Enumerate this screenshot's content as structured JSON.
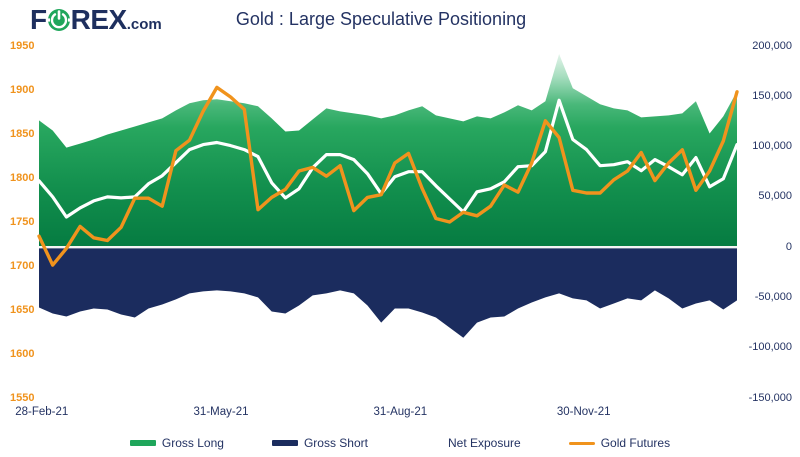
{
  "logo": {
    "text_before": "F",
    "power_letter": "O",
    "text_after": "REX",
    "tld": ".com"
  },
  "title": "Gold : Large Speculative Positioning",
  "colors": {
    "brand_navy": "#1E2F5E",
    "navy_area": "#1B2C5E",
    "navy_text": "#243363",
    "orange": "#F0931D",
    "green": "#1FA65B",
    "white_line": "#FFFFFF",
    "background": "#FFFFFF"
  },
  "chart_data": {
    "type": "area",
    "title": "Gold : Large Speculative Positioning",
    "x_unit": "week_index",
    "x_range": [
      0,
      51
    ],
    "x_ticks": [
      {
        "index": 0.2,
        "label": "28-Feb-21"
      },
      {
        "index": 13.3,
        "label": "31-May-21"
      },
      {
        "index": 26.4,
        "label": "31-Aug-21"
      },
      {
        "index": 39.8,
        "label": "30-Nov-21"
      }
    ],
    "left_axis": {
      "min": 1550,
      "max": 1950,
      "tick_step": 50,
      "tick_labels": [
        "1950",
        "1900",
        "1850",
        "1800",
        "1750",
        "1700",
        "1650",
        "1600",
        "1550"
      ],
      "color": "#F0931D"
    },
    "right_axis": {
      "min": -150000,
      "max": 200000,
      "tick_step": 50000,
      "tick_labels": [
        "200,000",
        "150,000",
        "100,000",
        "50,000",
        "0",
        "-50,000",
        "-100,000",
        "-150,000"
      ],
      "color": "#243363"
    },
    "grid": false,
    "legend_position": "bottom",
    "series": [
      {
        "name": "Gross Long",
        "type": "area",
        "axis": "right",
        "color": "#1FA65B",
        "gradient": [
          {
            "offset": 0,
            "color": "#E3F4EA"
          },
          {
            "offset": 0.12,
            "color": "#A5DDBE"
          },
          {
            "offset": 0.26,
            "color": "#4AB87A"
          },
          {
            "offset": 0.38,
            "color": "#28A75F"
          },
          {
            "offset": 0.68,
            "color": "#13904E"
          },
          {
            "offset": 1,
            "color": "#057B41"
          }
        ],
        "values": [
          126000,
          116000,
          99000,
          103000,
          107000,
          112000,
          116000,
          120000,
          124000,
          128000,
          136000,
          143000,
          146000,
          147000,
          145000,
          143000,
          140000,
          128000,
          115000,
          116000,
          127000,
          138000,
          135000,
          133000,
          131000,
          128000,
          131000,
          136000,
          140000,
          131000,
          128000,
          125000,
          130000,
          128000,
          134000,
          141000,
          136000,
          145000,
          192000,
          158000,
          150000,
          142000,
          138000,
          136000,
          129000,
          130000,
          131000,
          133000,
          145000,
          113000,
          130000,
          155000
        ]
      },
      {
        "name": "Gross Short",
        "type": "area",
        "axis": "right",
        "color": "#1B2C5E",
        "values": [
          -60000,
          -66000,
          -69000,
          -64000,
          -61000,
          -62000,
          -67000,
          -70000,
          -61000,
          -57000,
          -52000,
          -46000,
          -44000,
          -43000,
          -44000,
          -46000,
          -50000,
          -64000,
          -66000,
          -58000,
          -48000,
          -46000,
          -43000,
          -46000,
          -58000,
          -75000,
          -61000,
          -61000,
          -65000,
          -70000,
          -80000,
          -90000,
          -75000,
          -70000,
          -69000,
          -61000,
          -55000,
          -50000,
          -46000,
          -51000,
          -53000,
          -61000,
          -56000,
          -51000,
          -53000,
          -43000,
          -51000,
          -61000,
          -56000,
          -53000,
          -62000,
          -53000
        ]
      },
      {
        "name": "Net Exposure",
        "type": "line",
        "axis": "right",
        "color": "#FFFFFF",
        "values": [
          66000,
          50000,
          30000,
          39000,
          46000,
          50000,
          49000,
          50000,
          63000,
          71000,
          84000,
          97000,
          102000,
          104000,
          101000,
          97000,
          90000,
          64000,
          49000,
          58000,
          79000,
          92000,
          92000,
          87000,
          73000,
          53000,
          70000,
          75000,
          75000,
          61000,
          48000,
          35000,
          55000,
          58000,
          65000,
          80000,
          81000,
          95000,
          146000,
          107000,
          97000,
          81000,
          82000,
          85000,
          76000,
          87000,
          80000,
          72000,
          89000,
          60000,
          68000,
          102000
        ]
      },
      {
        "name": "Gold Futures",
        "type": "line",
        "axis": "left",
        "color": "#F0931D",
        "values": [
          1734,
          1701,
          1720,
          1745,
          1732,
          1729,
          1744,
          1777,
          1777,
          1768,
          1831,
          1843,
          1876,
          1903,
          1892,
          1878,
          1764,
          1778,
          1787,
          1808,
          1812,
          1802,
          1814,
          1763,
          1778,
          1781,
          1817,
          1828,
          1788,
          1754,
          1750,
          1761,
          1757,
          1768,
          1792,
          1784,
          1817,
          1865,
          1846,
          1786,
          1783,
          1783,
          1798,
          1808,
          1829,
          1797,
          1817,
          1832,
          1786,
          1808,
          1842,
          1898
        ]
      }
    ],
    "legend": [
      {
        "label": "Gross Long",
        "swatch": "bar",
        "color": "#1FA65B"
      },
      {
        "label": "Gross Short",
        "swatch": "bar",
        "color": "#1B2C5E"
      },
      {
        "label": "Net Exposure",
        "swatch": "line",
        "color": "#FFFFFF"
      },
      {
        "label": "Gold Futures",
        "swatch": "line",
        "color": "#F0931D"
      }
    ]
  }
}
